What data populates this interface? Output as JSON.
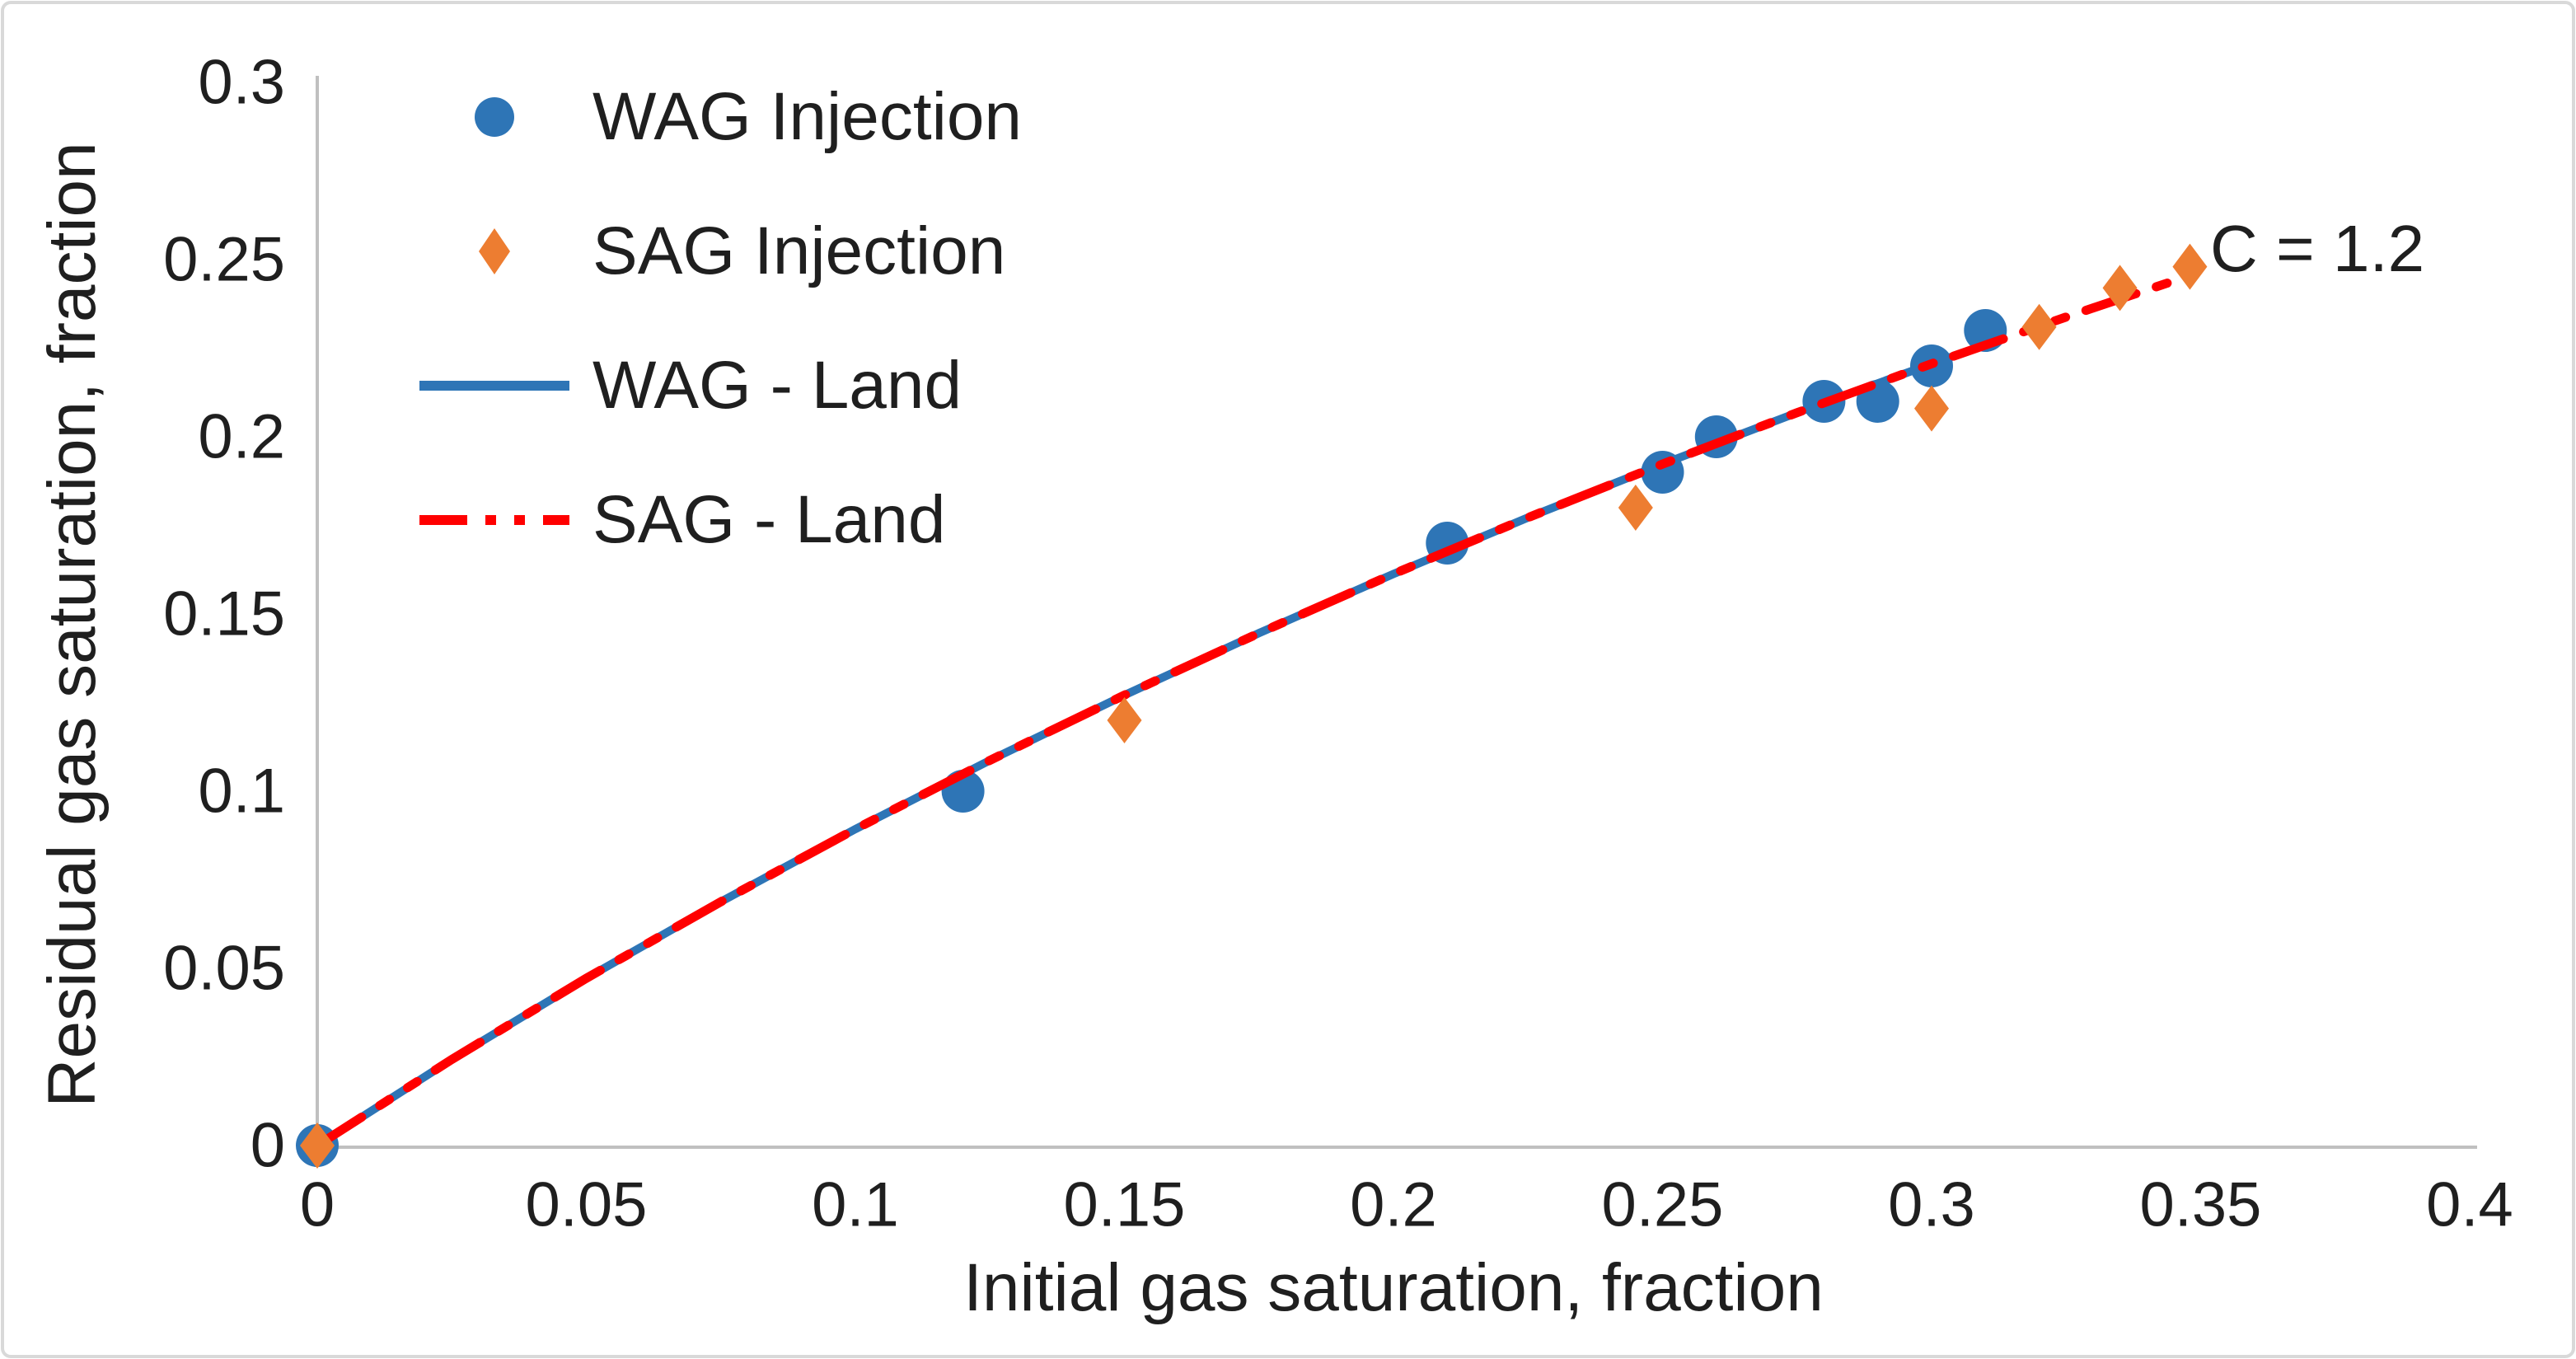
{
  "figure": {
    "background": "#FFFFFF",
    "border_color": "#D9D9D9"
  },
  "axes_style": {
    "axis_line_color": "#C0C0C0",
    "tick_label_color": "#1F1F1F",
    "text_color": "#1F1F1F"
  },
  "chart_data": {
    "type": "scatter",
    "title": "",
    "xlabel": "Initial gas saturation, fraction",
    "ylabel": "Residual gas saturation, fraction",
    "xlim": [
      0,
      0.4
    ],
    "ylim": [
      0,
      0.3
    ],
    "grid": false,
    "legend_position": "top-left",
    "annotation": {
      "text": "C = 1.2",
      "x": 0.369,
      "y": 0.251
    },
    "x_ticks": [
      {
        "value": 0,
        "label": "0"
      },
      {
        "value": 0.05,
        "label": "0.05"
      },
      {
        "value": 0.1,
        "label": "0.1"
      },
      {
        "value": 0.15,
        "label": "0.15"
      },
      {
        "value": 0.2,
        "label": "0.2"
      },
      {
        "value": 0.25,
        "label": "0.25"
      },
      {
        "value": 0.3,
        "label": "0.3"
      },
      {
        "value": 0.35,
        "label": "0.35"
      },
      {
        "value": 0.4,
        "label": "0.4"
      }
    ],
    "y_ticks": [
      {
        "value": 0,
        "label": "0"
      },
      {
        "value": 0.05,
        "label": "0.05"
      },
      {
        "value": 0.1,
        "label": "0.1"
      },
      {
        "value": 0.15,
        "label": "0.15"
      },
      {
        "value": 0.2,
        "label": "0.2"
      },
      {
        "value": 0.25,
        "label": "0.25"
      },
      {
        "value": 0.3,
        "label": "0.3"
      }
    ],
    "series": [
      {
        "name": "WAG - Land",
        "type": "line",
        "style": "solid",
        "color": "#2E75B6",
        "width": 10,
        "points": [
          [
            0,
            0
          ],
          [
            0.025,
            0.0243
          ],
          [
            0.05,
            0.0472
          ],
          [
            0.075,
            0.0688
          ],
          [
            0.1,
            0.0893
          ],
          [
            0.125,
            0.1087
          ],
          [
            0.15,
            0.1271
          ],
          [
            0.175,
            0.1446
          ],
          [
            0.2,
            0.1613
          ],
          [
            0.225,
            0.1772
          ],
          [
            0.25,
            0.1923
          ],
          [
            0.275,
            0.2068
          ],
          [
            0.3,
            0.2206
          ],
          [
            0.312,
            0.227
          ]
        ]
      },
      {
        "name": "WAG Injection",
        "type": "scatter",
        "marker": "circle",
        "color": "#2E75B6",
        "points": [
          [
            0,
            0
          ],
          [
            0.12,
            0.1
          ],
          [
            0.21,
            0.17
          ],
          [
            0.25,
            0.19
          ],
          [
            0.26,
            0.2
          ],
          [
            0.28,
            0.21
          ],
          [
            0.29,
            0.21
          ],
          [
            0.3,
            0.22
          ],
          [
            0.31,
            0.23
          ]
        ]
      },
      {
        "name": "SAG - Land",
        "type": "line",
        "style": "long-dash-dot-dot",
        "color": "#FF0000",
        "width": 11,
        "dash": "64 26 14 26 14 26",
        "points": [
          [
            0,
            0
          ],
          [
            0.025,
            0.0243
          ],
          [
            0.05,
            0.0472
          ],
          [
            0.075,
            0.0688
          ],
          [
            0.1,
            0.0893
          ],
          [
            0.125,
            0.1087
          ],
          [
            0.15,
            0.1271
          ],
          [
            0.175,
            0.1446
          ],
          [
            0.2,
            0.1613
          ],
          [
            0.225,
            0.1772
          ],
          [
            0.25,
            0.1923
          ],
          [
            0.275,
            0.2068
          ],
          [
            0.3,
            0.2206
          ],
          [
            0.325,
            0.2338
          ],
          [
            0.347,
            0.245
          ]
        ]
      },
      {
        "name": "SAG Injection",
        "type": "scatter",
        "marker": "diamond",
        "color": "#ED7D31",
        "points": [
          [
            0,
            0
          ],
          [
            0.15,
            0.12
          ],
          [
            0.245,
            0.18
          ],
          [
            0.3,
            0.208
          ],
          [
            0.32,
            0.231
          ],
          [
            0.335,
            0.242
          ],
          [
            0.348,
            0.248
          ]
        ]
      }
    ],
    "legend": [
      {
        "label": "WAG Injection",
        "marker": "circle",
        "color": "#2E75B6"
      },
      {
        "label": "SAG Injection",
        "marker": "diamond",
        "color": "#ED7D31"
      },
      {
        "label": "WAG - Land",
        "marker": "line-solid",
        "color": "#2E75B6"
      },
      {
        "label": "SAG - Land",
        "marker": "line-dash-dot-dot",
        "color": "#FF0000"
      }
    ]
  }
}
